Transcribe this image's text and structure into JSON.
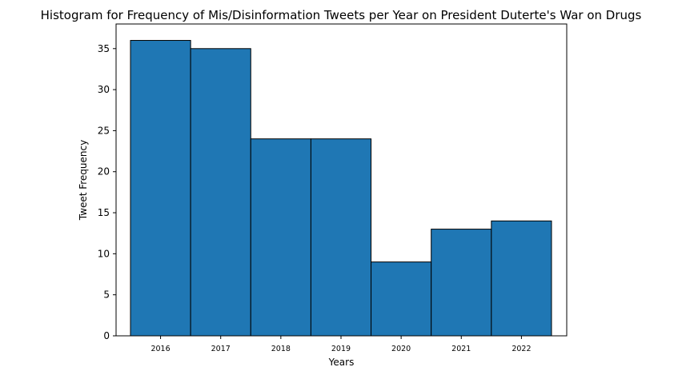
{
  "chart_data": {
    "type": "bar",
    "title": "Histogram for Frequency of Mis/Disinformation Tweets per Year on President Duterte's War on Drugs",
    "xlabel": "Years",
    "ylabel": "Tweet Frequency",
    "categories": [
      "2016",
      "2017",
      "2018",
      "2019",
      "2020",
      "2021",
      "2022"
    ],
    "values": [
      36,
      35,
      24,
      24,
      9,
      13,
      14
    ],
    "ylim": [
      0,
      38
    ],
    "yticks": [
      0,
      5,
      10,
      15,
      20,
      25,
      30,
      35
    ],
    "grid": false,
    "colors": {
      "bar": "#1f77b4",
      "edge": "#000000"
    }
  }
}
